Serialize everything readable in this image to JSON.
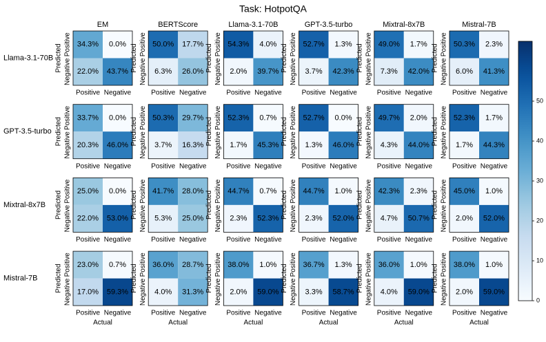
{
  "chart_data": {
    "type": "heatmap-grid",
    "title": "Task: HotpotQA",
    "row_names": [
      "Llama-3.1-70B",
      "GPT-3.5-turbo",
      "Mixtral-8x7B",
      "Mistral-7B"
    ],
    "col_names": [
      "EM",
      "BERTScore",
      "Llama-3.1-70B",
      "GPT-3.5-turbo",
      "Mixtral-8x7B",
      "Mistral-7B"
    ],
    "x_label": "Actual",
    "y_label": "Predicted",
    "x_categories": [
      "Positive",
      "Negative"
    ],
    "y_categories": [
      "Positive",
      "Negative"
    ],
    "colormap": "Blues",
    "clim": [
      0,
      65
    ],
    "cticks": [
      0,
      10,
      20,
      30,
      40,
      50
    ],
    "panels": [
      [
        {
          "values": [
            [
              34.3,
              0.0
            ],
            [
              22.0,
              43.7
            ]
          ],
          "value_labels": [
            [
              "34.3%",
              "0.0%"
            ],
            [
              "22.0%",
              "43.7%"
            ]
          ]
        },
        {
          "values": [
            [
              50.0,
              17.7
            ],
            [
              6.3,
              26.0
            ]
          ],
          "value_labels": [
            [
              "50.0%",
              "17.7%"
            ],
            [
              "6.3%",
              "26.0%"
            ]
          ]
        },
        {
          "values": [
            [
              54.3,
              4.0
            ],
            [
              2.0,
              39.7
            ]
          ],
          "value_labels": [
            [
              "54.3%",
              "4.0%"
            ],
            [
              "2.0%",
              "39.7%"
            ]
          ]
        },
        {
          "values": [
            [
              52.7,
              1.3
            ],
            [
              3.7,
              42.3
            ]
          ],
          "value_labels": [
            [
              "52.7%",
              "1.3%"
            ],
            [
              "3.7%",
              "42.3%"
            ]
          ]
        },
        {
          "values": [
            [
              49.0,
              1.7
            ],
            [
              7.3,
              42.0
            ]
          ],
          "value_labels": [
            [
              "49.0%",
              "1.7%"
            ],
            [
              "7.3%",
              "42.0%"
            ]
          ]
        },
        {
          "values": [
            [
              50.3,
              2.3
            ],
            [
              6.0,
              41.3
            ]
          ],
          "value_labels": [
            [
              "50.3%",
              "2.3%"
            ],
            [
              "6.0%",
              "41.3%"
            ]
          ]
        }
      ],
      [
        {
          "values": [
            [
              33.7,
              0.0
            ],
            [
              20.3,
              46.0
            ]
          ],
          "value_labels": [
            [
              "33.7%",
              "0.0%"
            ],
            [
              "20.3%",
              "46.0%"
            ]
          ]
        },
        {
          "values": [
            [
              50.3,
              29.7
            ],
            [
              3.7,
              16.3
            ]
          ],
          "value_labels": [
            [
              "50.3%",
              "29.7%"
            ],
            [
              "3.7%",
              "16.3%"
            ]
          ]
        },
        {
          "values": [
            [
              52.3,
              0.7
            ],
            [
              1.7,
              45.3
            ]
          ],
          "value_labels": [
            [
              "52.3%",
              "0.7%"
            ],
            [
              "1.7%",
              "45.3%"
            ]
          ]
        },
        {
          "values": [
            [
              52.7,
              0.0
            ],
            [
              1.3,
              46.0
            ]
          ],
          "value_labels": [
            [
              "52.7%",
              "0.0%"
            ],
            [
              "1.3%",
              "46.0%"
            ]
          ]
        },
        {
          "values": [
            [
              49.7,
              2.0
            ],
            [
              4.3,
              44.0
            ]
          ],
          "value_labels": [
            [
              "49.7%",
              "2.0%"
            ],
            [
              "4.3%",
              "44.0%"
            ]
          ]
        },
        {
          "values": [
            [
              52.3,
              1.7
            ],
            [
              1.7,
              44.3
            ]
          ],
          "value_labels": [
            [
              "52.3%",
              "1.7%"
            ],
            [
              "1.7%",
              "44.3%"
            ]
          ]
        }
      ],
      [
        {
          "values": [
            [
              25.0,
              0.0
            ],
            [
              22.0,
              53.0
            ]
          ],
          "value_labels": [
            [
              "25.0%",
              "0.0%"
            ],
            [
              "22.0%",
              "53.0%"
            ]
          ]
        },
        {
          "values": [
            [
              41.7,
              28.0
            ],
            [
              5.3,
              25.0
            ]
          ],
          "value_labels": [
            [
              "41.7%",
              "28.0%"
            ],
            [
              "5.3%",
              "25.0%"
            ]
          ]
        },
        {
          "values": [
            [
              44.7,
              0.7
            ],
            [
              2.3,
              52.3
            ]
          ],
          "value_labels": [
            [
              "44.7%",
              "0.7%"
            ],
            [
              "2.3%",
              "52.3%"
            ]
          ]
        },
        {
          "values": [
            [
              44.7,
              1.0
            ],
            [
              2.3,
              52.0
            ]
          ],
          "value_labels": [
            [
              "44.7%",
              "1.0%"
            ],
            [
              "2.3%",
              "52.0%"
            ]
          ]
        },
        {
          "values": [
            [
              42.3,
              2.3
            ],
            [
              4.7,
              50.7
            ]
          ],
          "value_labels": [
            [
              "42.3%",
              "2.3%"
            ],
            [
              "4.7%",
              "50.7%"
            ]
          ]
        },
        {
          "values": [
            [
              45.0,
              1.0
            ],
            [
              2.0,
              52.0
            ]
          ],
          "value_labels": [
            [
              "45.0%",
              "1.0%"
            ],
            [
              "2.0%",
              "52.0%"
            ]
          ]
        }
      ],
      [
        {
          "values": [
            [
              23.0,
              0.7
            ],
            [
              17.0,
              59.3
            ]
          ],
          "value_labels": [
            [
              "23.0%",
              "0.7%"
            ],
            [
              "17.0%",
              "59.3%"
            ]
          ]
        },
        {
          "values": [
            [
              36.0,
              28.7
            ],
            [
              4.0,
              31.3
            ]
          ],
          "value_labels": [
            [
              "36.0%",
              "28.7%"
            ],
            [
              "4.0%",
              "31.3%"
            ]
          ]
        },
        {
          "values": [
            [
              38.0,
              1.0
            ],
            [
              2.0,
              59.0
            ]
          ],
          "value_labels": [
            [
              "38.0%",
              "1.0%"
            ],
            [
              "2.0%",
              "59.0%"
            ]
          ]
        },
        {
          "values": [
            [
              36.7,
              1.3
            ],
            [
              3.3,
              58.7
            ]
          ],
          "value_labels": [
            [
              "36.7%",
              "1.3%"
            ],
            [
              "3.3%",
              "58.7%"
            ]
          ]
        },
        {
          "values": [
            [
              36.0,
              1.0
            ],
            [
              4.0,
              59.0
            ]
          ],
          "value_labels": [
            [
              "36.0%",
              "1.0%"
            ],
            [
              "4.0%",
              "59.0%"
            ]
          ]
        },
        {
          "values": [
            [
              38.0,
              1.0
            ],
            [
              2.0,
              59.0
            ]
          ],
          "value_labels": [
            [
              "38.0%",
              "1.0%"
            ],
            [
              "2.0%",
              "59.0%"
            ]
          ]
        }
      ]
    ]
  }
}
